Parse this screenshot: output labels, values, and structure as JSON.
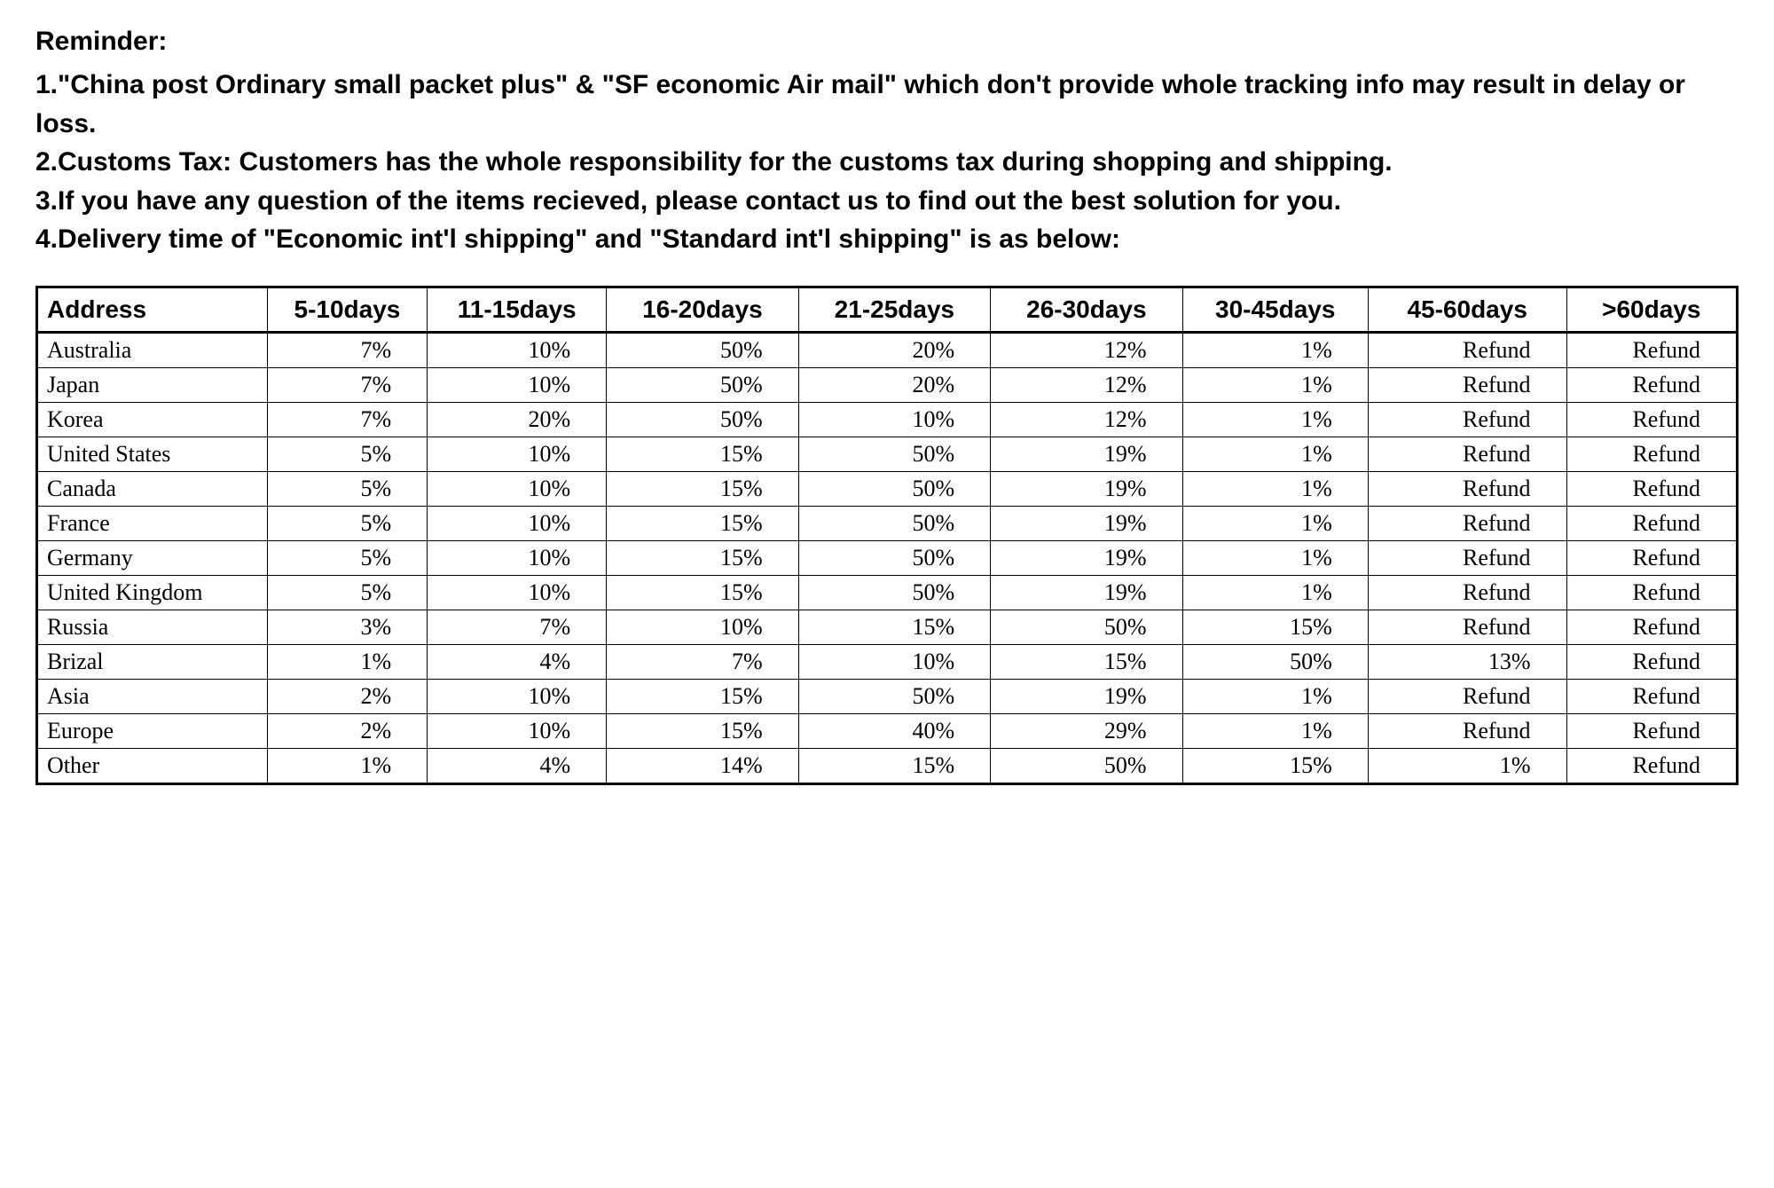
{
  "reminder": {
    "heading": "Reminder:",
    "lines": [
      "1.\"China post Ordinary small packet plus\" & \"SF economic Air mail\" which don't provide whole tracking info may result in delay or loss.",
      "2.Customs Tax: Customers has the whole responsibility for the customs tax during shopping and shipping.",
      "3.If you have any question of the items recieved, please contact us to find out the best solution for you.",
      "4.Delivery time of \"Economic int'l shipping\" and \"Standard int'l shipping\" is as below:"
    ]
  },
  "table": {
    "type": "table",
    "columns": [
      "Address",
      "5-10days",
      "11-15days",
      "16-20days",
      "21-25days",
      "26-30days",
      "30-45days",
      "45-60days",
      ">60days"
    ],
    "rows": [
      [
        "Australia",
        "7%",
        "10%",
        "50%",
        "20%",
        "12%",
        "1%",
        "Refund",
        "Refund"
      ],
      [
        "Japan",
        "7%",
        "10%",
        "50%",
        "20%",
        "12%",
        "1%",
        "Refund",
        "Refund"
      ],
      [
        "Korea",
        "7%",
        "20%",
        "50%",
        "10%",
        "12%",
        "1%",
        "Refund",
        "Refund"
      ],
      [
        "United States",
        "5%",
        "10%",
        "15%",
        "50%",
        "19%",
        "1%",
        "Refund",
        "Refund"
      ],
      [
        "Canada",
        "5%",
        "10%",
        "15%",
        "50%",
        "19%",
        "1%",
        "Refund",
        "Refund"
      ],
      [
        "France",
        "5%",
        "10%",
        "15%",
        "50%",
        "19%",
        "1%",
        "Refund",
        "Refund"
      ],
      [
        "Germany",
        "5%",
        "10%",
        "15%",
        "50%",
        "19%",
        "1%",
        "Refund",
        "Refund"
      ],
      [
        "United Kingdom",
        "5%",
        "10%",
        "15%",
        "50%",
        "19%",
        "1%",
        "Refund",
        "Refund"
      ],
      [
        "Russia",
        "3%",
        "7%",
        "10%",
        "15%",
        "50%",
        "15%",
        "Refund",
        "Refund"
      ],
      [
        "Brizal",
        "1%",
        "4%",
        "7%",
        "10%",
        "15%",
        "50%",
        "13%",
        "Refund"
      ],
      [
        "Asia",
        "2%",
        "10%",
        "15%",
        "50%",
        "19%",
        "1%",
        "Refund",
        "Refund"
      ],
      [
        "Europe",
        "2%",
        "10%",
        "15%",
        "40%",
        "29%",
        "1%",
        "Refund",
        "Refund"
      ],
      [
        "Other",
        "1%",
        "4%",
        "14%",
        "15%",
        "50%",
        "15%",
        "1%",
        "Refund"
      ]
    ],
    "header_font_weight": "bold",
    "header_fontsize": 28,
    "body_fontsize": 26,
    "border_color": "#000000",
    "outer_border_width": 3,
    "inner_border_width": 1,
    "background_color": "#ffffff",
    "address_col_align": "left",
    "value_col_align": "right"
  },
  "styling": {
    "page_background": "#ffffff",
    "text_color": "#000000",
    "reminder_fontsize": 30,
    "reminder_font_weight": "bold",
    "body_font_family": "Arial",
    "table_address_font_family": "Georgia"
  }
}
